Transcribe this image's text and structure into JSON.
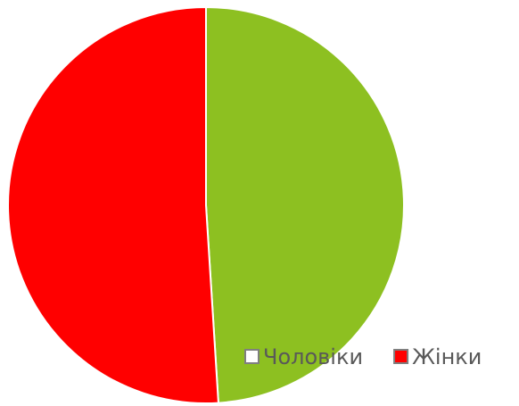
{
  "chart_data": {
    "type": "pie",
    "categories": [
      "Чоловіки",
      "Жінки"
    ],
    "values": [
      49,
      51
    ],
    "colors": [
      "#8dc021",
      "#ff0000"
    ],
    "legend_colors": [
      "#ffffff",
      "#ff0000"
    ],
    "start_angle": 0,
    "direction": "clockwise",
    "legend": "bottom-right"
  }
}
